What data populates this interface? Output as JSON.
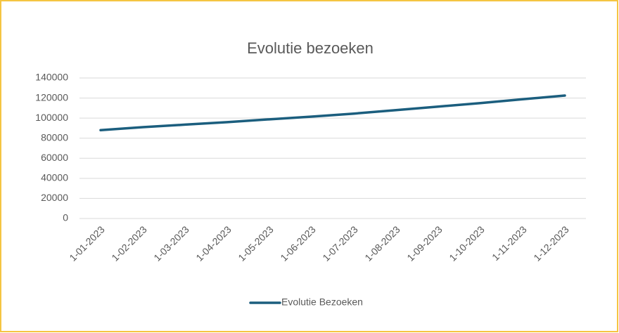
{
  "chart_data": {
    "type": "line",
    "title": "Evolutie bezoeken",
    "categories": [
      "1-01-2023",
      "1-02-2023",
      "1-03-2023",
      "1-04-2023",
      "1-05-2023",
      "1-06-2023",
      "1-07-2023",
      "1-08-2023",
      "1-09-2023",
      "1-10-2023",
      "1-11-2023",
      "1-12-2023"
    ],
    "series": [
      {
        "name": "Evolutie Bezoeken",
        "color": "#1b5e7e",
        "values": [
          88000,
          91000,
          93500,
          96000,
          98800,
          101500,
          104500,
          108000,
          111500,
          115000,
          118800,
          122500
        ]
      }
    ],
    "ylim": [
      0,
      140000
    ],
    "yticks": [
      0,
      20000,
      40000,
      60000,
      80000,
      100000,
      120000,
      140000
    ],
    "grid": true,
    "legend": "bottom"
  }
}
